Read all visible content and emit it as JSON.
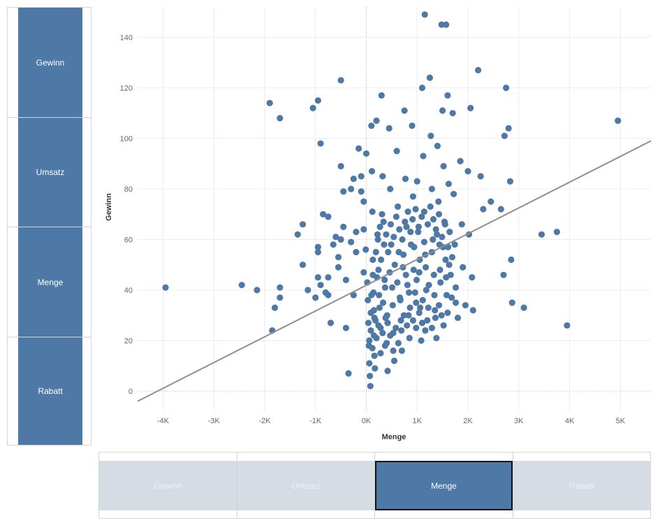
{
  "left_panel": {
    "items": [
      {
        "label": "Gewinn"
      },
      {
        "label": "Umsatz"
      },
      {
        "label": "Menge"
      },
      {
        "label": "Rabatt"
      }
    ]
  },
  "bottom_panel": {
    "items": [
      {
        "label": "Gewinn",
        "active": false
      },
      {
        "label": "Umsatz",
        "active": false
      },
      {
        "label": "Menge",
        "active": true
      },
      {
        "label": "Rabatt",
        "active": false
      }
    ]
  },
  "colors": {
    "mark": "#4e79a7",
    "trend": "#8f8f8f",
    "inactive_button": "#d5dce4",
    "active_button": "#4e79a7"
  },
  "chart_data": {
    "type": "scatter",
    "xlabel": "Menge",
    "ylabel": "Gewinn",
    "xlim": [
      -4500,
      5600
    ],
    "ylim": [
      -8,
      152
    ],
    "x_ticks": [
      {
        "value": -4000,
        "label": "-4K"
      },
      {
        "value": -3000,
        "label": "-3K"
      },
      {
        "value": -2000,
        "label": "-2K"
      },
      {
        "value": -1000,
        "label": "-1K"
      },
      {
        "value": 0,
        "label": "0K"
      },
      {
        "value": 1000,
        "label": "1K"
      },
      {
        "value": 2000,
        "label": "2K"
      },
      {
        "value": 3000,
        "label": "3K"
      },
      {
        "value": 4000,
        "label": "4K"
      },
      {
        "value": 5000,
        "label": "5K"
      }
    ],
    "y_ticks": [
      {
        "value": 0,
        "label": "0"
      },
      {
        "value": 20,
        "label": "20"
      },
      {
        "value": 40,
        "label": "40"
      },
      {
        "value": 60,
        "label": "60"
      },
      {
        "value": 80,
        "label": "80"
      },
      {
        "value": 100,
        "label": "100"
      },
      {
        "value": 120,
        "label": "120"
      },
      {
        "value": 140,
        "label": "140"
      }
    ],
    "grid": true,
    "trend_line": {
      "x": [
        -4500,
        5600
      ],
      "y": [
        -4,
        99
      ]
    },
    "points": [
      [
        -3950,
        41
      ],
      [
        -2450,
        42
      ],
      [
        -2150,
        40
      ],
      [
        -1900,
        114
      ],
      [
        -1850,
        24
      ],
      [
        -1800,
        33
      ],
      [
        -1700,
        108
      ],
      [
        -1700,
        41
      ],
      [
        -1700,
        37
      ],
      [
        -1350,
        62
      ],
      [
        -1250,
        66
      ],
      [
        -1250,
        50
      ],
      [
        -1150,
        40
      ],
      [
        -1050,
        112
      ],
      [
        -1000,
        37
      ],
      [
        -950,
        115
      ],
      [
        -950,
        57
      ],
      [
        -950,
        55
      ],
      [
        -950,
        45
      ],
      [
        -900,
        98
      ],
      [
        -900,
        42
      ],
      [
        -850,
        70
      ],
      [
        -800,
        39
      ],
      [
        -750,
        69
      ],
      [
        -750,
        45
      ],
      [
        -750,
        38
      ],
      [
        -700,
        27
      ],
      [
        -650,
        58
      ],
      [
        -600,
        61
      ],
      [
        -550,
        53
      ],
      [
        -550,
        49
      ],
      [
        -500,
        123
      ],
      [
        -500,
        89
      ],
      [
        -500,
        60
      ],
      [
        -450,
        79
      ],
      [
        -450,
        65
      ],
      [
        -400,
        44
      ],
      [
        -400,
        25
      ],
      [
        -350,
        7
      ],
      [
        -300,
        80
      ],
      [
        -300,
        59
      ],
      [
        -250,
        84
      ],
      [
        -250,
        38
      ],
      [
        -200,
        63
      ],
      [
        -200,
        55
      ],
      [
        -150,
        96
      ],
      [
        -100,
        85
      ],
      [
        -100,
        79
      ],
      [
        -50,
        75
      ],
      [
        -50,
        64
      ],
      [
        -50,
        47
      ],
      [
        0,
        94
      ],
      [
        -10,
        56
      ],
      [
        20,
        43
      ],
      [
        30,
        36
      ],
      [
        40,
        27
      ],
      [
        50,
        18
      ],
      [
        60,
        11
      ],
      [
        70,
        6
      ],
      [
        80,
        2
      ],
      [
        90,
        31
      ],
      [
        100,
        105
      ],
      [
        110,
        87
      ],
      [
        120,
        71
      ],
      [
        130,
        52
      ],
      [
        140,
        39
      ],
      [
        150,
        22
      ],
      [
        160,
        14
      ],
      [
        170,
        9
      ],
      [
        200,
        107
      ],
      [
        220,
        62
      ],
      [
        240,
        48
      ],
      [
        260,
        33
      ],
      [
        280,
        25
      ],
      [
        300,
        117
      ],
      [
        320,
        85
      ],
      [
        340,
        67
      ],
      [
        360,
        44
      ],
      [
        380,
        29
      ],
      [
        400,
        19
      ],
      [
        420,
        8
      ],
      [
        450,
        104
      ],
      [
        470,
        80
      ],
      [
        490,
        58
      ],
      [
        510,
        41
      ],
      [
        530,
        23
      ],
      [
        550,
        12
      ],
      [
        600,
        95
      ],
      [
        620,
        73
      ],
      [
        640,
        55
      ],
      [
        660,
        37
      ],
      [
        680,
        28
      ],
      [
        700,
        16
      ],
      [
        720,
        49
      ],
      [
        750,
        111
      ],
      [
        770,
        84
      ],
      [
        790,
        65
      ],
      [
        810,
        42
      ],
      [
        830,
        30
      ],
      [
        850,
        21
      ],
      [
        900,
        105
      ],
      [
        920,
        77
      ],
      [
        940,
        57
      ],
      [
        960,
        39
      ],
      [
        980,
        25
      ],
      [
        1000,
        83
      ],
      [
        1020,
        63
      ],
      [
        1040,
        47
      ],
      [
        1060,
        33
      ],
      [
        1080,
        20
      ],
      [
        1100,
        120
      ],
      [
        1120,
        93
      ],
      [
        1140,
        71
      ],
      [
        1160,
        54
      ],
      [
        1180,
        40
      ],
      [
        1200,
        28
      ],
      [
        1250,
        124
      ],
      [
        1270,
        101
      ],
      [
        1290,
        80
      ],
      [
        1310,
        60
      ],
      [
        1330,
        46
      ],
      [
        1350,
        32
      ],
      [
        1380,
        21
      ],
      [
        1400,
        97
      ],
      [
        1420,
        75
      ],
      [
        1440,
        58
      ],
      [
        1460,
        43
      ],
      [
        1480,
        30
      ],
      [
        1500,
        111
      ],
      [
        1520,
        89
      ],
      [
        1540,
        67
      ],
      [
        1560,
        52
      ],
      [
        1580,
        38
      ],
      [
        1600,
        117
      ],
      [
        1620,
        82
      ],
      [
        1640,
        63
      ],
      [
        1660,
        46
      ],
      [
        1700,
        110
      ],
      [
        1720,
        78
      ],
      [
        1740,
        58
      ],
      [
        1760,
        41
      ],
      [
        1800,
        29
      ],
      [
        1850,
        91
      ],
      [
        1880,
        66
      ],
      [
        1900,
        49
      ],
      [
        1950,
        34
      ],
      [
        2000,
        87
      ],
      [
        2020,
        62
      ],
      [
        2050,
        112
      ],
      [
        2080,
        45
      ],
      [
        2100,
        32
      ],
      [
        2200,
        127
      ],
      [
        2250,
        85
      ],
      [
        2300,
        72
      ],
      [
        2450,
        75
      ],
      [
        2650,
        72
      ],
      [
        2700,
        46
      ],
      [
        2720,
        101
      ],
      [
        2750,
        120
      ],
      [
        2800,
        104
      ],
      [
        2830,
        83
      ],
      [
        2850,
        52
      ],
      [
        2870,
        35
      ],
      [
        3100,
        33
      ],
      [
        3450,
        62
      ],
      [
        3750,
        63
      ],
      [
        3950,
        26
      ],
      [
        4950,
        107
      ],
      [
        1150,
        149
      ],
      [
        1480,
        145
      ],
      [
        1570,
        145
      ],
      [
        150,
        32
      ],
      [
        180,
        28
      ],
      [
        210,
        45
      ],
      [
        250,
        38
      ],
      [
        290,
        52
      ],
      [
        330,
        35
      ],
      [
        370,
        41
      ],
      [
        410,
        30
      ],
      [
        460,
        47
      ],
      [
        520,
        34
      ],
      [
        560,
        50
      ],
      [
        610,
        43
      ],
      [
        670,
        36
      ],
      [
        730,
        54
      ],
      [
        780,
        46
      ],
      [
        840,
        39
      ],
      [
        880,
        58
      ],
      [
        930,
        48
      ],
      [
        990,
        44
      ],
      [
        1050,
        52
      ],
      [
        1110,
        36
      ],
      [
        1170,
        49
      ],
      [
        1230,
        42
      ],
      [
        1290,
        55
      ],
      [
        1340,
        38
      ],
      [
        1390,
        62
      ],
      [
        1450,
        48
      ],
      [
        1510,
        57
      ],
      [
        1570,
        45
      ],
      [
        1630,
        50
      ],
      [
        1690,
        53
      ],
      [
        100,
        38
      ],
      [
        130,
        46
      ],
      [
        190,
        55
      ],
      [
        230,
        60
      ],
      [
        270,
        65
      ],
      [
        310,
        70
      ],
      [
        350,
        58
      ],
      [
        390,
        62
      ],
      [
        430,
        55
      ],
      [
        480,
        66
      ],
      [
        540,
        61
      ],
      [
        590,
        69
      ],
      [
        650,
        64
      ],
      [
        710,
        60
      ],
      [
        760,
        67
      ],
      [
        820,
        71
      ],
      [
        870,
        63
      ],
      [
        910,
        68
      ],
      [
        970,
        72
      ],
      [
        1030,
        65
      ],
      [
        1090,
        69
      ],
      [
        1140,
        59
      ],
      [
        1210,
        66
      ],
      [
        1260,
        73
      ],
      [
        1320,
        68
      ],
      [
        1370,
        64
      ],
      [
        1430,
        70
      ],
      [
        1490,
        61
      ],
      [
        1550,
        66
      ],
      [
        1610,
        57
      ],
      [
        60,
        20
      ],
      [
        90,
        24
      ],
      [
        120,
        17
      ],
      [
        160,
        29
      ],
      [
        200,
        21
      ],
      [
        240,
        26
      ],
      [
        280,
        15
      ],
      [
        320,
        23
      ],
      [
        370,
        18
      ],
      [
        420,
        27
      ],
      [
        470,
        22
      ],
      [
        530,
        16
      ],
      [
        580,
        25
      ],
      [
        630,
        19
      ],
      [
        690,
        24
      ],
      [
        740,
        30
      ],
      [
        800,
        26
      ],
      [
        860,
        33
      ],
      [
        920,
        28
      ],
      [
        980,
        35
      ],
      [
        1040,
        31
      ],
      [
        1100,
        27
      ],
      [
        1160,
        24
      ],
      [
        1220,
        33
      ],
      [
        1290,
        25
      ],
      [
        1360,
        29
      ],
      [
        1430,
        34
      ],
      [
        1520,
        26
      ],
      [
        1600,
        31
      ],
      [
        1680,
        37
      ],
      [
        1760,
        35
      ]
    ]
  }
}
